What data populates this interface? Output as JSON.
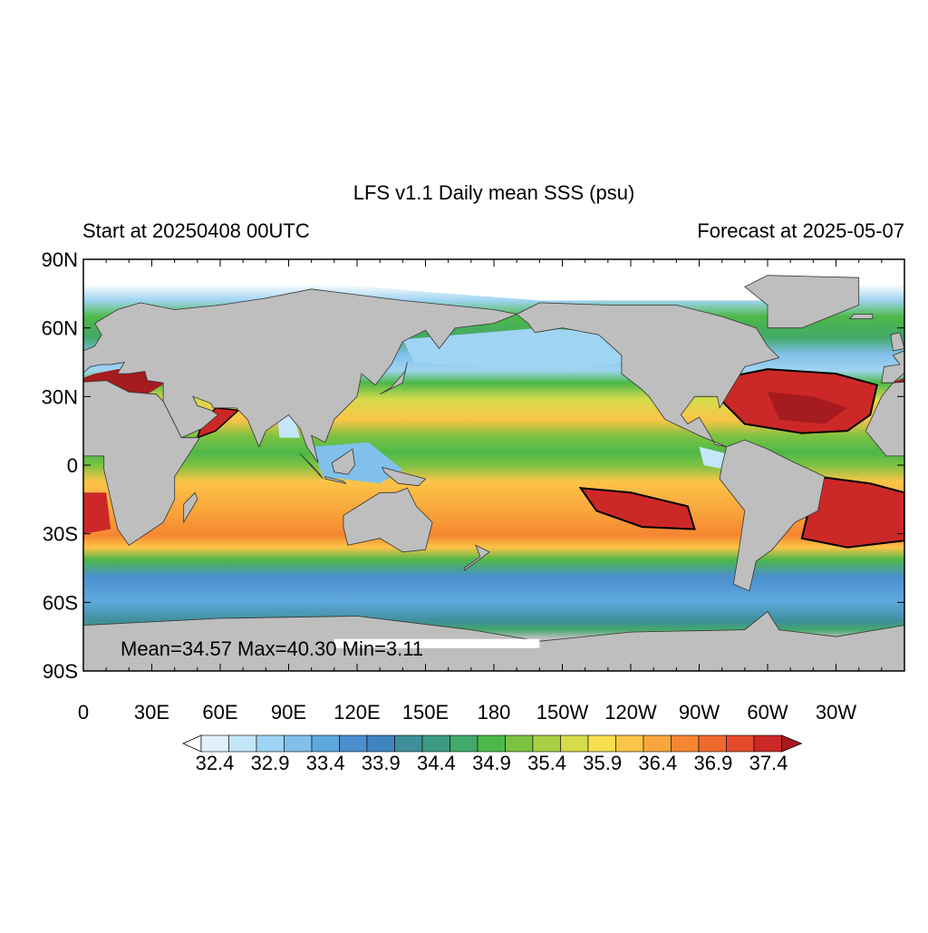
{
  "title": "LFS v1.1 Daily mean SSS (psu)",
  "left_subtitle": "Start at 20250408 00UTC",
  "right_subtitle": "Forecast at 2025-05-07",
  "annotation": "Mean=34.57  Max=40.30  Min=3.11",
  "lat_ticks": [
    "90N",
    "60N",
    "30N",
    "0",
    "30S",
    "60S",
    "90S"
  ],
  "lon_ticks": [
    "0",
    "30E",
    "60E",
    "90E",
    "120E",
    "150E",
    "180",
    "150W",
    "120W",
    "90W",
    "60W",
    "30W"
  ],
  "colorbar": {
    "labels": [
      "32.4",
      "32.9",
      "33.4",
      "33.9",
      "34.4",
      "34.9",
      "35.4",
      "35.9",
      "36.4",
      "36.9",
      "37.4"
    ],
    "colors": [
      "#ffffff",
      "#dff0fb",
      "#c3e6f8",
      "#9fd4f2",
      "#80c0ea",
      "#5fa8de",
      "#4a8fce",
      "#3f84bf",
      "#3f8f9a",
      "#3d9a80",
      "#43a96a",
      "#4db848",
      "#7cc242",
      "#a9cf45",
      "#d4dc4c",
      "#f7e04e",
      "#fcc448",
      "#f9a63c",
      "#f68632",
      "#ef6a2c",
      "#e34b2b",
      "#cc2827",
      "#a51b1f"
    ]
  }
}
